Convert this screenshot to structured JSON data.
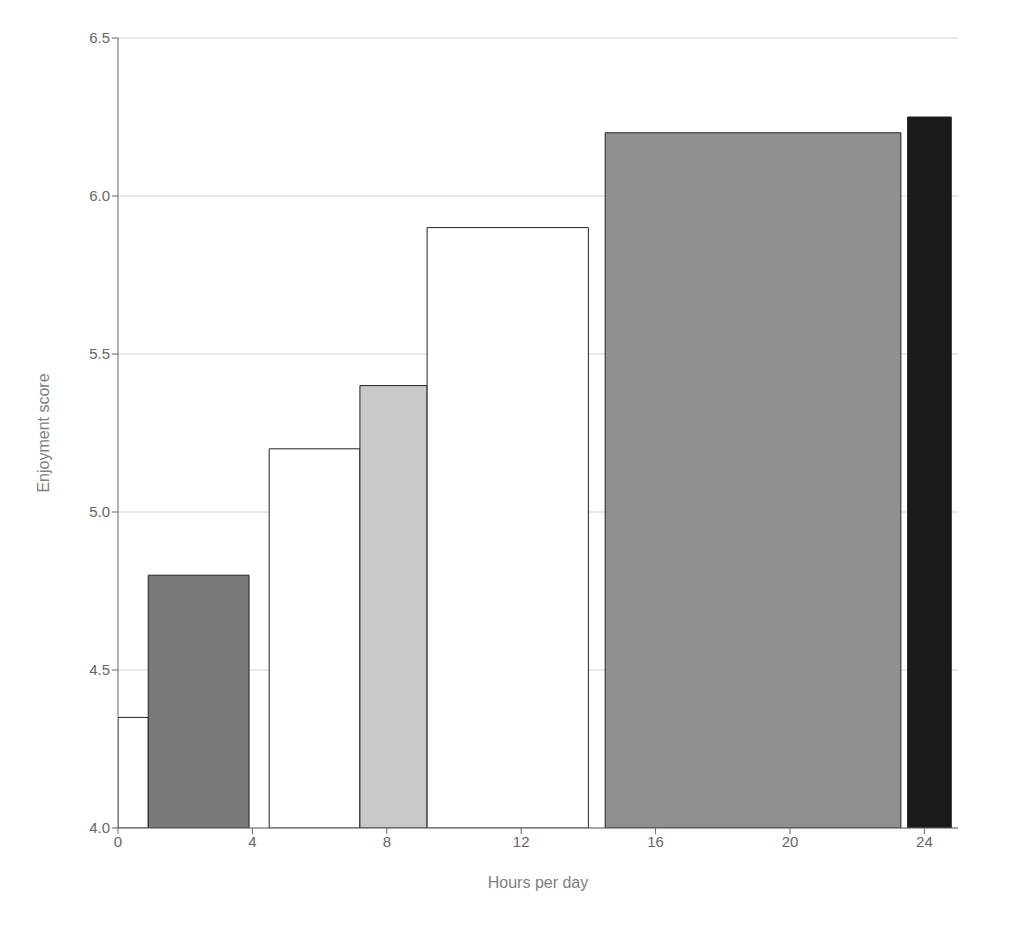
{
  "chart_data": {
    "type": "bar",
    "xlabel": "Hours per day",
    "ylabel": "Enjoyment score",
    "x_left": [
      0.0,
      0.9,
      4.5,
      7.2,
      9.2,
      14.5,
      23.5
    ],
    "x_right": [
      0.9,
      3.9,
      7.2,
      9.2,
      14.0,
      23.3,
      24.8
    ],
    "values": [
      4.35,
      4.8,
      5.2,
      5.4,
      5.9,
      6.2,
      6.25
    ],
    "colors": [
      "#ffffff",
      "#7a7a7a",
      "#ffffff",
      "#c8c8c8",
      "#ffffff",
      "#909090",
      "#1a1a1a"
    ],
    "xlim": [
      0,
      25.0
    ],
    "ylim": [
      4.0,
      6.5
    ],
    "xticks": [
      0,
      4,
      8,
      12,
      16,
      20,
      24
    ],
    "yticks": [
      {
        "value": 4.0,
        "label": "4.0"
      },
      4.5,
      {
        "value": 5.0,
        "label": "5.0"
      },
      5.5,
      {
        "value": 6.0,
        "label": "6.0"
      },
      6.5
    ],
    "grid": true
  }
}
